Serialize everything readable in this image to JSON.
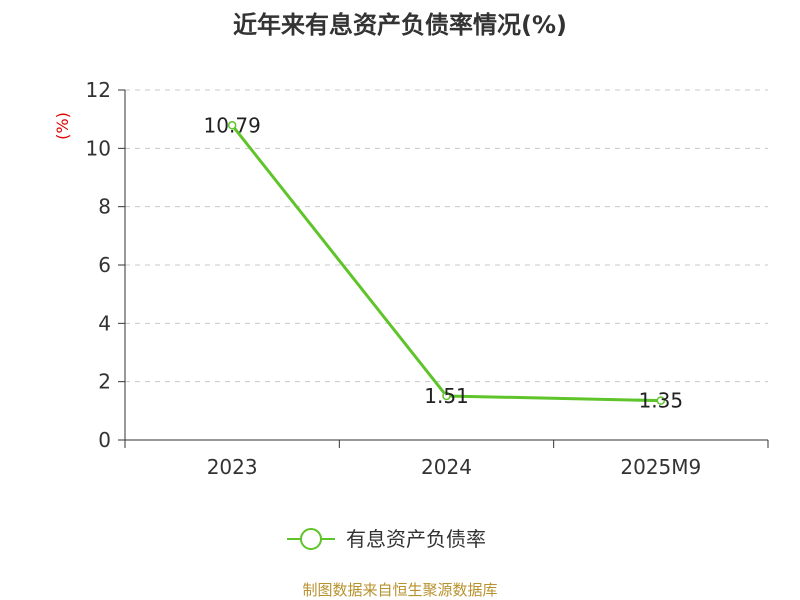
{
  "chart_data": {
    "type": "line",
    "title": "近年来有息资产负债率情况(%)",
    "ylabel": "(%)",
    "xlabel": "",
    "categories": [
      "2023",
      "2024",
      "2025M9"
    ],
    "series": [
      {
        "name": "有息资产负债率",
        "values": [
          10.79,
          1.51,
          1.35
        ],
        "labels": [
          "10.79",
          "1.51",
          "1.35"
        ]
      }
    ],
    "ylim": [
      0,
      12
    ],
    "yticks": [
      0,
      2,
      4,
      6,
      8,
      10,
      12
    ],
    "grid": true,
    "legend_position": "bottom",
    "line_color": "#5ec429"
  },
  "source": "制图数据来自恒生聚源数据库"
}
